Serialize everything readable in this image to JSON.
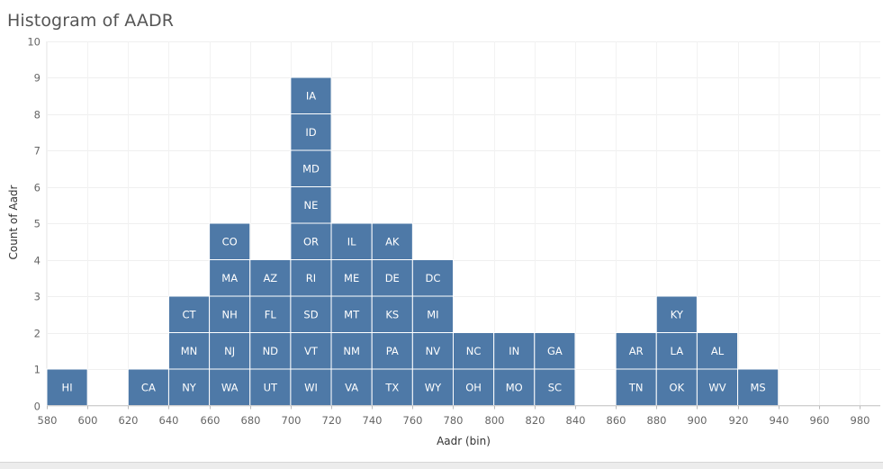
{
  "title": "Histogram of AADR",
  "chart_data": {
    "type": "bar",
    "title": "Histogram of AADR",
    "xlabel": "Aadr (bin)",
    "ylabel": "Count of Aadr",
    "ylim": [
      0,
      10
    ],
    "xlim": [
      580,
      980
    ],
    "bin_width": 20,
    "grid": true,
    "y_ticks": [
      0,
      1,
      2,
      3,
      4,
      5,
      6,
      7,
      8,
      9,
      10
    ],
    "x_ticks": [
      580,
      600,
      620,
      640,
      660,
      680,
      700,
      720,
      740,
      760,
      780,
      800,
      820,
      840,
      860,
      880,
      900,
      920,
      940,
      960,
      980
    ],
    "bar_color": "#4e79a7",
    "bins": [
      {
        "bin": 590,
        "count": 1,
        "states": [
          "HI"
        ]
      },
      {
        "bin": 630,
        "count": 1,
        "states": [
          "CA"
        ]
      },
      {
        "bin": 650,
        "count": 3,
        "states": [
          "NY",
          "MN",
          "CT"
        ]
      },
      {
        "bin": 670,
        "count": 5,
        "states": [
          "WA",
          "NJ",
          "NH",
          "MA",
          "CO"
        ]
      },
      {
        "bin": 690,
        "count": 4,
        "states": [
          "UT",
          "ND",
          "FL",
          "AZ"
        ]
      },
      {
        "bin": 710,
        "count": 9,
        "states": [
          "WI",
          "VT",
          "SD",
          "RI",
          "OR",
          "NE",
          "MD",
          "ID",
          "IA"
        ]
      },
      {
        "bin": 730,
        "count": 5,
        "states": [
          "VA",
          "NM",
          "MT",
          "ME",
          "IL"
        ]
      },
      {
        "bin": 750,
        "count": 5,
        "states": [
          "TX",
          "PA",
          "KS",
          "DE",
          "AK"
        ]
      },
      {
        "bin": 770,
        "count": 4,
        "states": [
          "WY",
          "NV",
          "MI",
          "DC"
        ]
      },
      {
        "bin": 790,
        "count": 2,
        "states": [
          "OH",
          "NC"
        ]
      },
      {
        "bin": 810,
        "count": 2,
        "states": [
          "MO",
          "IN"
        ]
      },
      {
        "bin": 830,
        "count": 2,
        "states": [
          "SC",
          "GA"
        ]
      },
      {
        "bin": 870,
        "count": 2,
        "states": [
          "TN",
          "AR"
        ]
      },
      {
        "bin": 890,
        "count": 3,
        "states": [
          "OK",
          "LA",
          "KY"
        ]
      },
      {
        "bin": 910,
        "count": 2,
        "states": [
          "WV",
          "AL"
        ]
      },
      {
        "bin": 930,
        "count": 1,
        "states": [
          "MS"
        ]
      }
    ]
  }
}
